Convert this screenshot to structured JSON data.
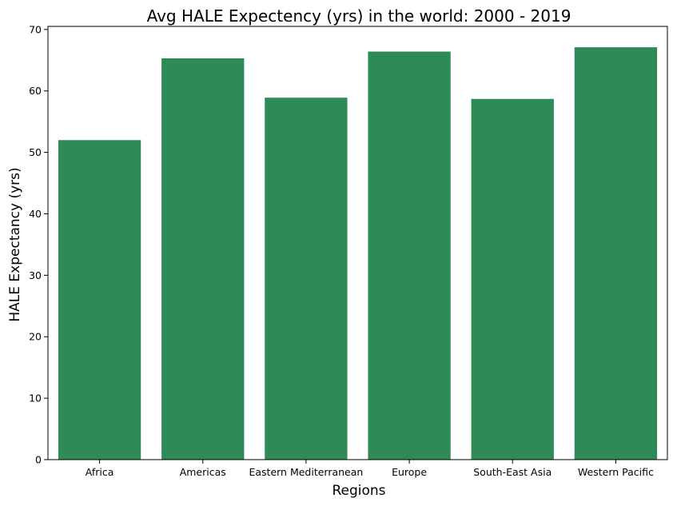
{
  "chart_data": {
    "type": "bar",
    "title": "Avg HALE Expectency (yrs) in the world: 2000 - 2019",
    "xlabel": "Regions",
    "ylabel": "HALE Expectancy (yrs)",
    "categories": [
      "Africa",
      "Americas",
      "Eastern Mediterranean",
      "Europe",
      "South-East Asia",
      "Western Pacific"
    ],
    "values": [
      52.0,
      65.3,
      58.9,
      66.4,
      58.7,
      67.1
    ],
    "ylim": [
      0,
      70.5
    ],
    "yticks": [
      0,
      10,
      20,
      30,
      40,
      50,
      60,
      70
    ],
    "ytick_labels": [
      "0",
      "10",
      "20",
      "30",
      "40",
      "50",
      "60",
      "70"
    ],
    "bar_color": "#2e8b57",
    "grid": false,
    "legend": "none"
  }
}
